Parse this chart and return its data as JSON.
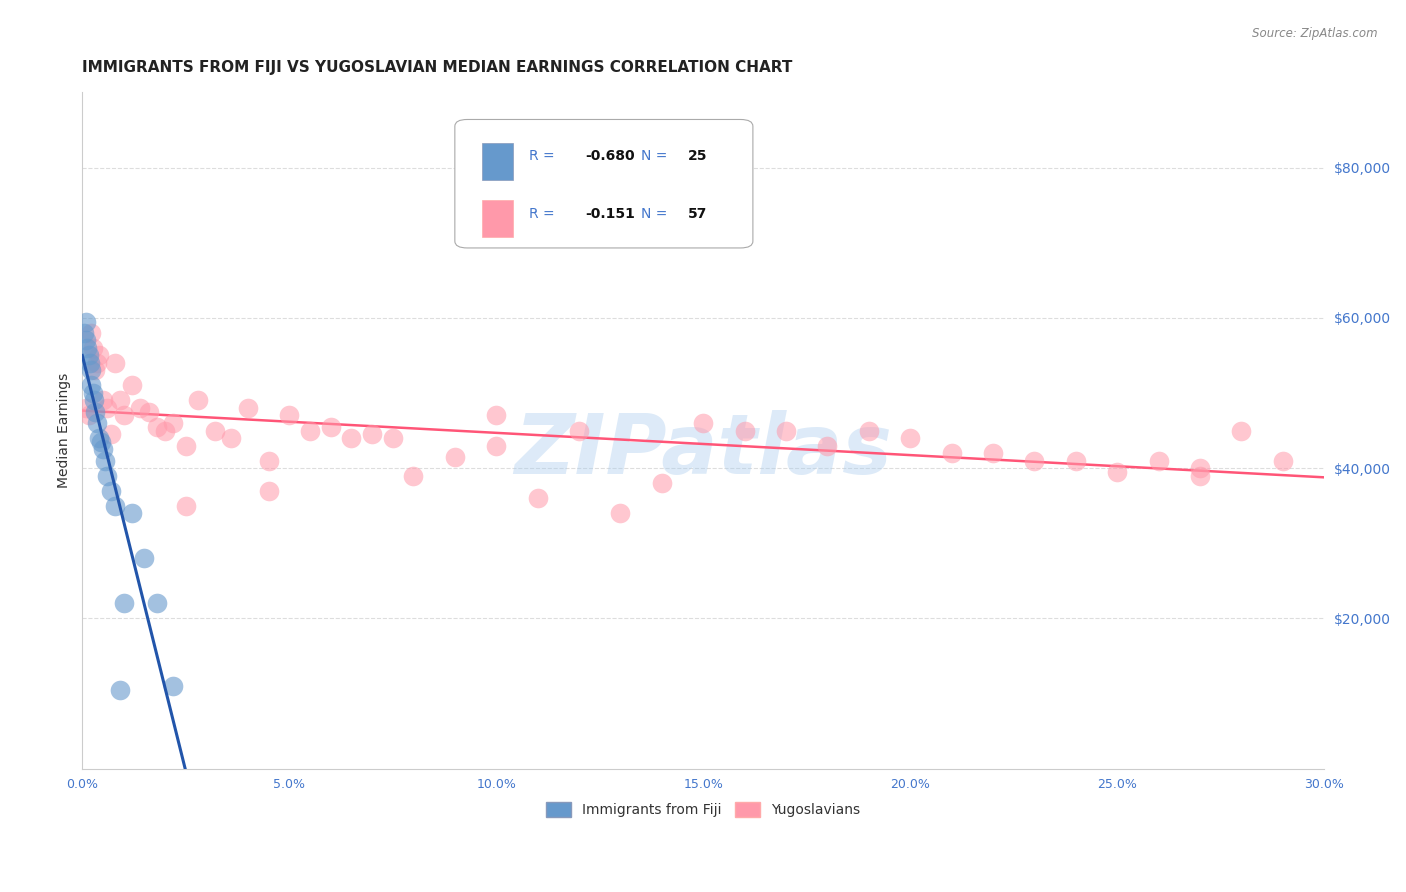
{
  "title": "IMMIGRANTS FROM FIJI VS YUGOSLAVIAN MEDIAN EARNINGS CORRELATION CHART",
  "source": "Source: ZipAtlas.com",
  "ylabel": "Median Earnings",
  "xlabel_ticks": [
    "0.0%",
    "5.0%",
    "10.0%",
    "15.0%",
    "20.0%",
    "25.0%",
    "30.0%"
  ],
  "xlabel_vals": [
    0.0,
    5.0,
    10.0,
    15.0,
    20.0,
    25.0,
    30.0
  ],
  "ytick_labels": [
    "$80,000",
    "$60,000",
    "$40,000",
    "$20,000"
  ],
  "ytick_vals": [
    80000,
    60000,
    40000,
    20000
  ],
  "ylim": [
    0,
    90000
  ],
  "xlim": [
    0,
    30
  ],
  "fiji_R": "-0.680",
  "fiji_N": "25",
  "yugo_R": "-0.151",
  "yugo_N": "57",
  "fiji_color": "#6699cc",
  "yugo_color": "#ff99aa",
  "fiji_line_color": "#2255aa",
  "yugo_line_color": "#ff5577",
  "watermark": "ZIPatlas",
  "watermark_color": "#aaccee",
  "legend_color": "#4477cc",
  "background_color": "#ffffff",
  "grid_color": "#dddddd",
  "title_fontsize": 11,
  "axis_fontsize": 9,
  "fiji_scatter_x": [
    0.05,
    0.08,
    0.1,
    0.12,
    0.15,
    0.18,
    0.2,
    0.22,
    0.25,
    0.28,
    0.3,
    0.35,
    0.4,
    0.45,
    0.5,
    0.55,
    0.6,
    0.7,
    0.8,
    0.9,
    1.0,
    1.2,
    1.5,
    1.8,
    2.2
  ],
  "fiji_scatter_y": [
    58000,
    59500,
    57000,
    56000,
    55000,
    54000,
    53000,
    51000,
    50000,
    49000,
    47500,
    46000,
    44000,
    43500,
    42500,
    41000,
    39000,
    37000,
    35000,
    10500,
    22000,
    34000,
    28000,
    22000,
    11000
  ],
  "yugo_scatter_x": [
    0.1,
    0.15,
    0.2,
    0.25,
    0.3,
    0.35,
    0.4,
    0.5,
    0.6,
    0.7,
    0.8,
    0.9,
    1.0,
    1.2,
    1.4,
    1.6,
    1.8,
    2.0,
    2.2,
    2.5,
    2.8,
    3.2,
    3.6,
    4.0,
    4.5,
    5.0,
    5.5,
    6.0,
    6.5,
    7.0,
    7.5,
    8.0,
    9.0,
    10.0,
    11.0,
    12.0,
    13.0,
    14.0,
    15.0,
    16.0,
    17.0,
    18.0,
    19.0,
    20.0,
    21.0,
    22.0,
    23.0,
    24.0,
    25.0,
    26.0,
    27.0,
    28.0,
    29.0,
    2.5,
    4.5,
    10.0,
    27.0
  ],
  "yugo_scatter_y": [
    48000,
    47000,
    58000,
    56000,
    53000,
    54000,
    55000,
    49000,
    48000,
    44500,
    54000,
    49000,
    47000,
    51000,
    48000,
    47500,
    45500,
    45000,
    46000,
    43000,
    49000,
    45000,
    44000,
    48000,
    41000,
    47000,
    45000,
    45500,
    44000,
    44500,
    44000,
    39000,
    41500,
    47000,
    36000,
    45000,
    34000,
    38000,
    46000,
    45000,
    45000,
    43000,
    45000,
    44000,
    42000,
    42000,
    41000,
    41000,
    39500,
    41000,
    40000,
    45000,
    41000,
    35000,
    37000,
    43000,
    39000
  ],
  "fiji_line_x0": 0.0,
  "fiji_line_x1": 2.5,
  "fiji_line_dash_x1": 4.5,
  "yugo_line_x0": 0.0,
  "yugo_line_x1": 30.0
}
